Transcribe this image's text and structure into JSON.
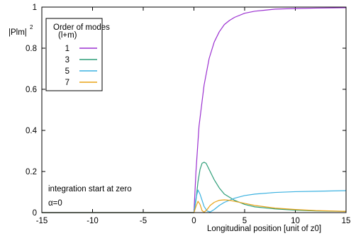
{
  "chart_data": {
    "type": "line",
    "title": "",
    "xlabel": "Longitudinal position [unit of z0]",
    "ylabel": "|Plm|",
    "ylabel_superscript": "2",
    "xlim": [
      -15,
      15
    ],
    "ylim": [
      0,
      1
    ],
    "xticks": [
      "-15",
      "-10",
      "-5",
      "0",
      "5",
      "10",
      "15"
    ],
    "yticks": [
      "0",
      "0.2",
      "0.4",
      "0.6",
      "0.8",
      "1"
    ],
    "grid": false,
    "legend": {
      "title_line1": "Order of modes",
      "title_line2": "(l+m)",
      "placement": "top-left"
    },
    "annotations": [
      "integration start at zero",
      "α=0"
    ],
    "series": [
      {
        "name": "1",
        "color": "#9b30d0",
        "x": [
          -15,
          0,
          0.2,
          0.5,
          1,
          1.5,
          2,
          2.5,
          3,
          3.5,
          4,
          5,
          6,
          7,
          8,
          10,
          12,
          15
        ],
        "y": [
          0,
          0,
          0.2,
          0.42,
          0.62,
          0.75,
          0.83,
          0.88,
          0.915,
          0.935,
          0.95,
          0.97,
          0.98,
          0.985,
          0.99,
          0.993,
          0.995,
          0.997
        ]
      },
      {
        "name": "3",
        "color": "#2e9e78",
        "x": [
          -15,
          0,
          0.2,
          0.4,
          0.6,
          0.8,
          1,
          1.2,
          1.5,
          2,
          2.5,
          3,
          4,
          5,
          6,
          8,
          10,
          12,
          15
        ],
        "y": [
          0,
          0,
          0.06,
          0.15,
          0.21,
          0.24,
          0.245,
          0.24,
          0.21,
          0.16,
          0.12,
          0.09,
          0.06,
          0.04,
          0.028,
          0.018,
          0.012,
          0.008,
          0.006
        ]
      },
      {
        "name": "5",
        "color": "#3ab1e0",
        "x": [
          -15,
          0,
          0.2,
          0.4,
          0.6,
          0.8,
          1,
          1.3,
          1.6,
          2,
          2.5,
          3,
          4,
          5,
          6,
          8,
          10,
          12,
          15
        ],
        "y": [
          0,
          0,
          0.07,
          0.11,
          0.09,
          0.06,
          0.03,
          0.008,
          0.003,
          0.015,
          0.035,
          0.05,
          0.07,
          0.083,
          0.09,
          0.098,
          0.102,
          0.104,
          0.107
        ]
      },
      {
        "name": "7",
        "color": "#e8a317",
        "x": [
          -15,
          0,
          0.2,
          0.4,
          0.6,
          0.8,
          1,
          1.3,
          1.6,
          2,
          2.5,
          3,
          3.5,
          4,
          5,
          6,
          8,
          10,
          12,
          15
        ],
        "y": [
          0,
          0,
          0.03,
          0.055,
          0.04,
          0.01,
          0.002,
          0.015,
          0.035,
          0.05,
          0.06,
          0.062,
          0.06,
          0.055,
          0.045,
          0.035,
          0.022,
          0.015,
          0.01,
          0.006
        ]
      }
    ]
  }
}
